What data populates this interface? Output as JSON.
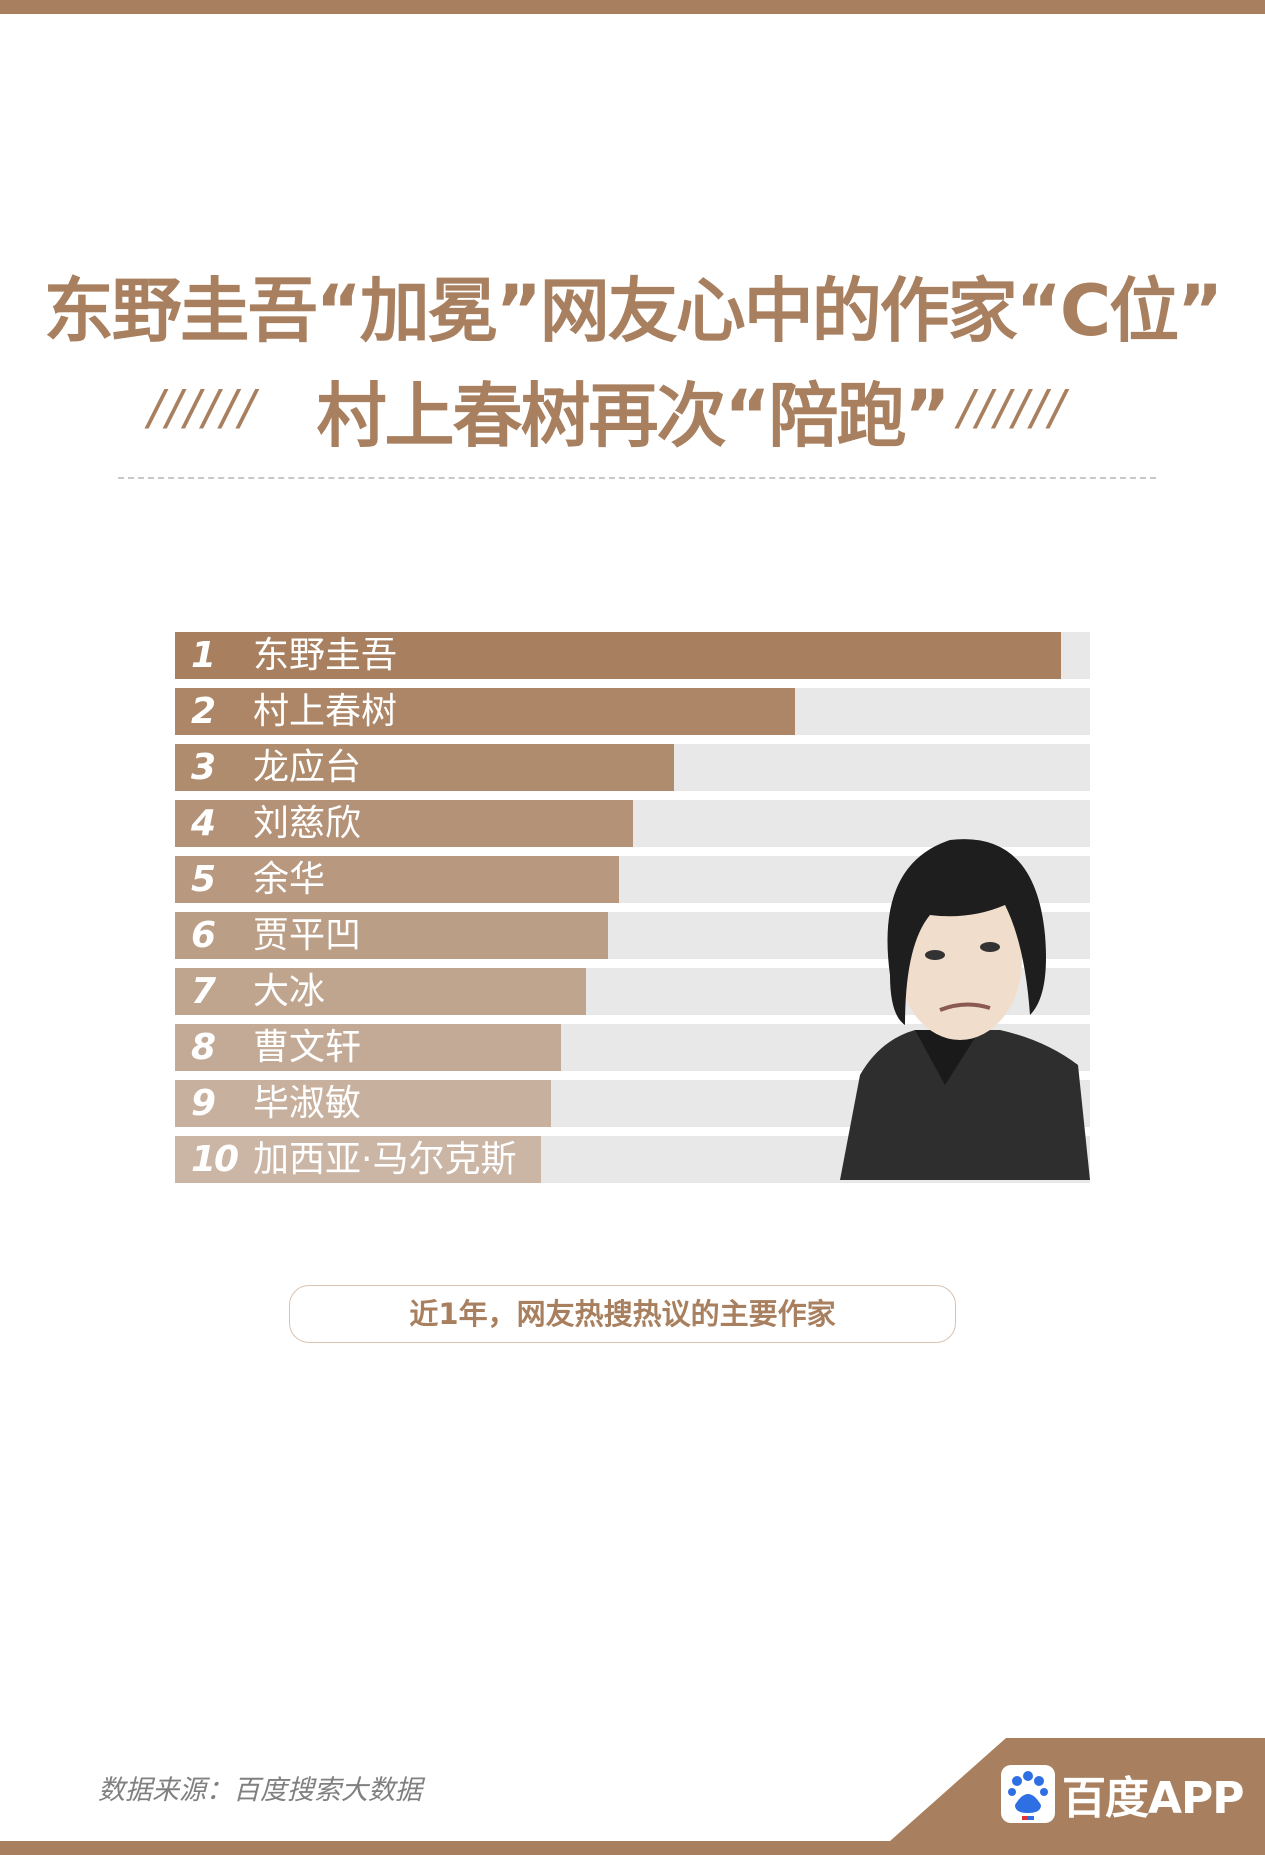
{
  "colors": {
    "brand": "#a8805f",
    "bar_start": "#a8805f",
    "bar_end": "#cbb6a6",
    "track": "#e8e8e8"
  },
  "header": {
    "title_line1": "东野圭吾“加冕”网友心中的作家“C位”",
    "title_line2": "村上春树再次“陪跑”",
    "slashes": "//////"
  },
  "chart_data": {
    "type": "bar",
    "orientation": "horizontal",
    "categories": [
      "东野圭吾",
      "村上春树",
      "龙应台",
      "刘慈欣",
      "余华",
      "贾平凹",
      "大冰",
      "曹文轩",
      "毕淑敏",
      "加西亚·马尔克斯"
    ],
    "ranks": [
      "1",
      "2",
      "3",
      "4",
      "5",
      "6",
      "7",
      "8",
      "9",
      "10"
    ],
    "values": [
      96.8,
      67.8,
      54.5,
      50.1,
      48.5,
      47.3,
      44.9,
      42.2,
      41.1,
      40.0
    ],
    "xlim": [
      0,
      100
    ],
    "title": "",
    "xlabel": "",
    "ylabel": "",
    "grid": false
  },
  "caption": "近1年，网友热搜热议的主要作家",
  "footer": {
    "source": "数据来源：百度搜索大数据",
    "app_label": "百度APP",
    "app_logo_text": "du"
  }
}
